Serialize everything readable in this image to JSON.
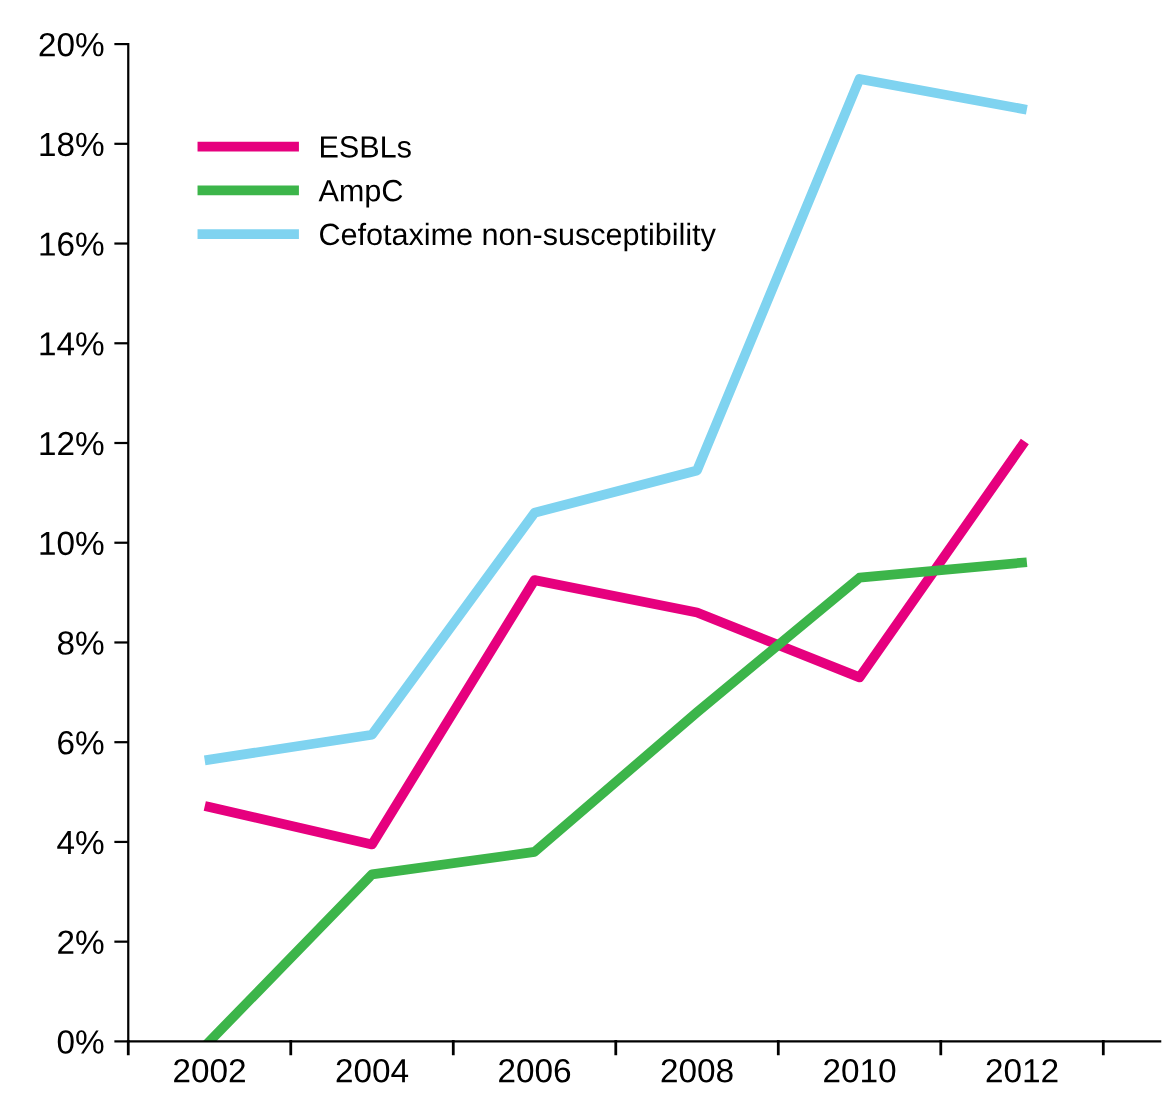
{
  "chart_data": {
    "type": "line",
    "x": [
      2002,
      2004,
      2006,
      2008,
      2010,
      2012
    ],
    "series": [
      {
        "name": "ESBLs",
        "color": "#e6007e",
        "values": [
          4.7,
          3.95,
          9.25,
          8.6,
          7.3,
          11.95
        ]
      },
      {
        "name": "AmpC",
        "color": "#3cb54a",
        "values": [
          0,
          3.35,
          3.8,
          6.6,
          9.3,
          9.6
        ]
      },
      {
        "name": "Cefotaxime non-susceptibility",
        "color": "#7fd3f0",
        "values": [
          5.65,
          6.15,
          10.6,
          11.45,
          19.3,
          18.7
        ]
      }
    ],
    "xlim": [
      2001,
      2013.7
    ],
    "xticks": [
      {
        "value": 2001,
        "label": null
      },
      {
        "value": 2002,
        "label": "2002"
      },
      {
        "value": 2003,
        "label": null
      },
      {
        "value": 2004,
        "label": "2004"
      },
      {
        "value": 2005,
        "label": null
      },
      {
        "value": 2006,
        "label": "2006"
      },
      {
        "value": 2007,
        "label": null
      },
      {
        "value": 2008,
        "label": "2008"
      },
      {
        "value": 2009,
        "label": null
      },
      {
        "value": 2010,
        "label": "2010"
      },
      {
        "value": 2011,
        "label": null
      },
      {
        "value": 2012,
        "label": "2012"
      },
      {
        "value": 2013,
        "label": null
      }
    ],
    "ylim": [
      0,
      20
    ],
    "yticks": [
      {
        "value": 0,
        "label": "0%"
      },
      {
        "value": 2,
        "label": "2%"
      },
      {
        "value": 4,
        "label": "4%"
      },
      {
        "value": 6,
        "label": "6%"
      },
      {
        "value": 8,
        "label": "8%"
      },
      {
        "value": 10,
        "label": "10%"
      },
      {
        "value": 12,
        "label": "12%"
      },
      {
        "value": 14,
        "label": "14%"
      },
      {
        "value": 16,
        "label": "16%"
      },
      {
        "value": 18,
        "label": "18%"
      },
      {
        "value": 20,
        "label": "20%"
      }
    ],
    "grid": false,
    "legend": "top left",
    "marker": "none",
    "line_style": "solid"
  }
}
